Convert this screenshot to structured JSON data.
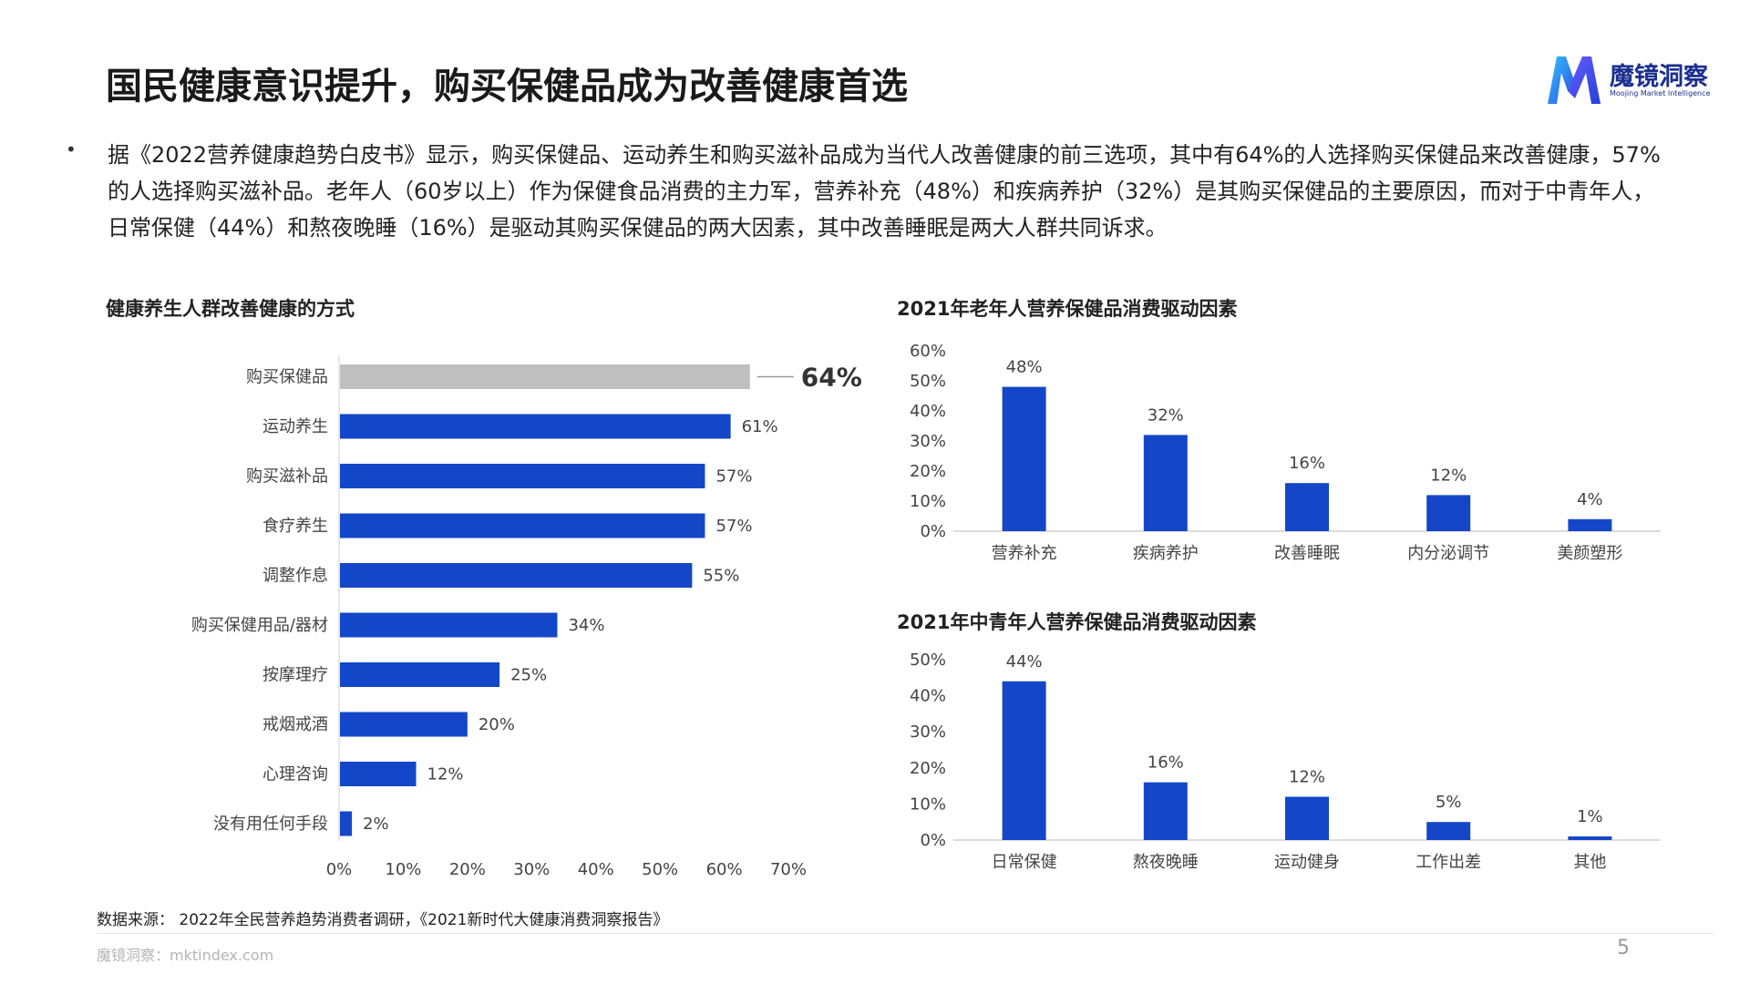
{
  "page": {
    "title": "国民健康意识提升，购买保健品成为改善健康首选",
    "paragraph": "据《2022营养健康趋势白皮书》显示，购买保健品、运动养生和购买滋补品成为当代人改善健康的前三选项，其中有64%的人选择购买保健品来改善健康，57%的人选择购买滋补品。老年人（60岁以上）作为保健食品消费的主力军，营养补充（48%）和疾病养护（32%）是其购买保健品的主要原因，而对于中青年人，日常保健（44%）和熬夜晚睡（16%）是驱动其购买保健品的两大因素，其中改善睡眠是两大人群共同诉求。",
    "bullet": "•",
    "source": "数据来源：  2022年全民营养趋势消费者调研，《2021新时代大健康消费洞察报告》",
    "footer": "魔镜洞察：mktindex.com",
    "page_number": "5"
  },
  "logo": {
    "name": "魔镜洞察",
    "subtitle": "Moojing Market Intelligence",
    "icon": "moojing-m-logo-icon"
  },
  "colors": {
    "accent": "#1446c8",
    "highlight_bar": "#bfbfbf",
    "axis": "#d0d0d0",
    "text": "#444444"
  },
  "chart_data": [
    {
      "type": "bar",
      "orientation": "horizontal",
      "title": "健康养生人群改善健康的方式",
      "categories": [
        "购买保健品",
        "运动养生",
        "购买滋补品",
        "食疗养生",
        "调整作息",
        "购买保健用品/器材",
        "按摩理疗",
        "戒烟戒酒",
        "心理咨询",
        "没有用任何手段"
      ],
      "values": [
        64,
        61,
        57,
        57,
        55,
        34,
        25,
        20,
        12,
        2
      ],
      "value_labels": [
        "64%",
        "61%",
        "57%",
        "57%",
        "55%",
        "34%",
        "25%",
        "20%",
        "12%",
        "2%"
      ],
      "highlight_index": 0,
      "xlim": [
        0,
        70
      ],
      "xticks": [
        "0%",
        "10%",
        "20%",
        "30%",
        "40%",
        "50%",
        "60%",
        "70%"
      ],
      "unit": "%"
    },
    {
      "type": "bar",
      "title": "2021年老年人营养保健品消费驱动因素",
      "categories": [
        "营养补充",
        "疾病养护",
        "改善睡眠",
        "内分泌调节",
        "美颜塑形"
      ],
      "values": [
        48,
        32,
        16,
        12,
        4
      ],
      "value_labels": [
        "48%",
        "32%",
        "16%",
        "12%",
        "4%"
      ],
      "ylim": [
        0,
        60
      ],
      "yticks": [
        "0%",
        "10%",
        "20%",
        "30%",
        "40%",
        "50%",
        "60%"
      ],
      "unit": "%"
    },
    {
      "type": "bar",
      "title": "2021年中青年人营养保健品消费驱动因素",
      "categories": [
        "日常保健",
        "熬夜晚睡",
        "运动健身",
        "工作出差",
        "其他"
      ],
      "values": [
        44,
        16,
        12,
        5,
        1
      ],
      "value_labels": [
        "44%",
        "16%",
        "12%",
        "5%",
        "1%"
      ],
      "ylim": [
        0,
        50
      ],
      "yticks": [
        "0%",
        "10%",
        "20%",
        "30%",
        "40%",
        "50%"
      ],
      "unit": "%"
    }
  ]
}
